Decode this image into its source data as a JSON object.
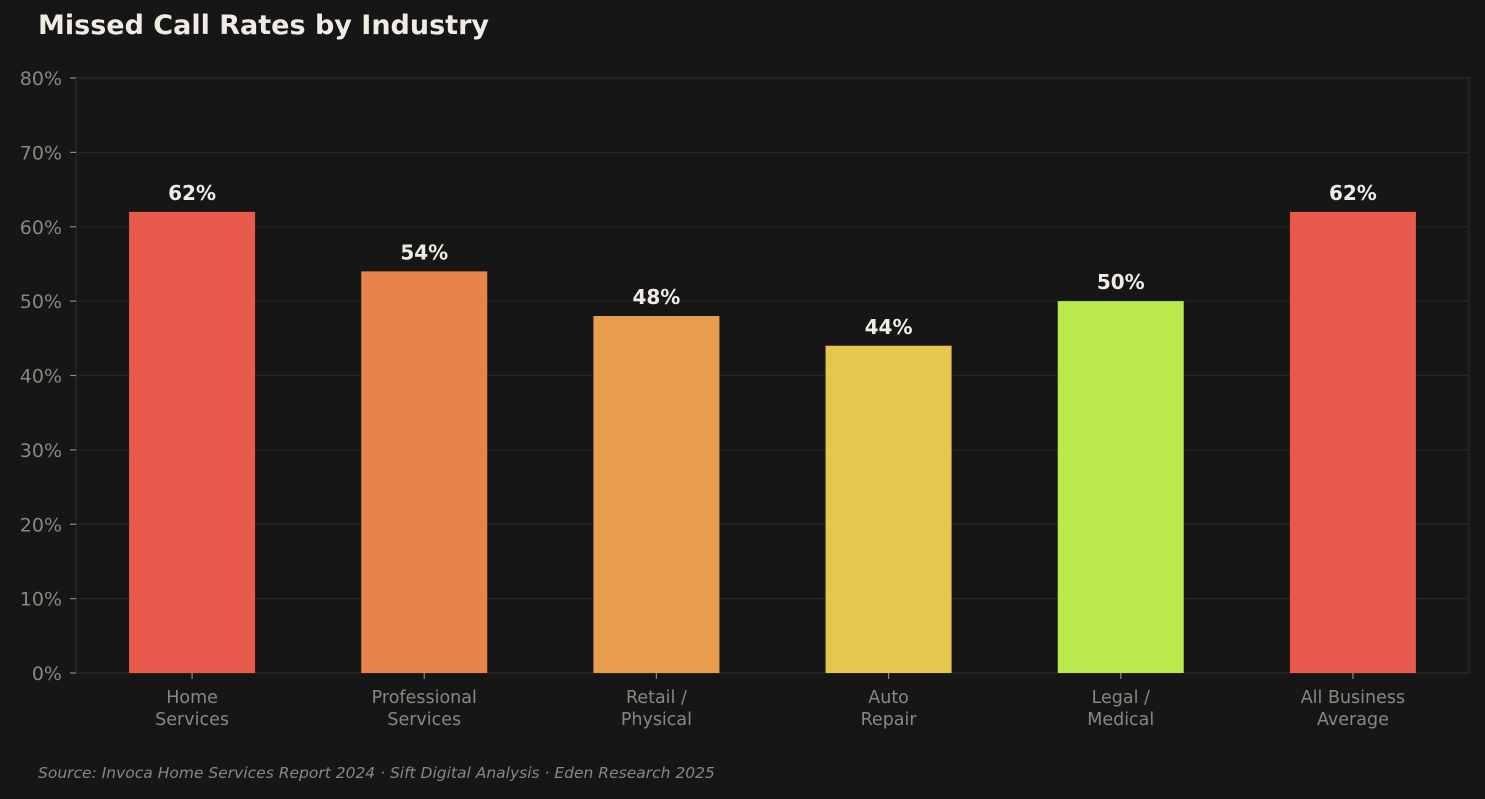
{
  "chart_data": {
    "type": "bar",
    "title": "Missed Call Rates by Industry",
    "categories": [
      [
        "Home",
        "Services"
      ],
      [
        "Professional",
        "Services"
      ],
      [
        "Retail /",
        "Physical"
      ],
      [
        "Auto",
        "Repair"
      ],
      [
        "Legal /",
        "Medical"
      ],
      [
        "All Business",
        "Average"
      ]
    ],
    "values": [
      62,
      54,
      48,
      44,
      50,
      62
    ],
    "data_labels": [
      "62%",
      "54%",
      "48%",
      "44%",
      "50%",
      "62%"
    ],
    "colors": [
      "#E85B4C",
      "#E8834C",
      "#E89D4C",
      "#E6C64C",
      "#BBE84C",
      "#E85B4C"
    ],
    "ylim": [
      0,
      80
    ],
    "yticks": [
      0,
      10,
      20,
      30,
      40,
      50,
      60,
      70,
      80
    ],
    "ytick_labels": [
      "0%",
      "10%",
      "20%",
      "30%",
      "40%",
      "50%",
      "60%",
      "70%",
      "80%"
    ],
    "xlabel": "",
    "ylabel": "",
    "grid": true,
    "source": "Source: Invoca Home Services Report 2024 · Sift Digital Analysis · Eden Research 2025"
  },
  "theme": {
    "background": "#161616",
    "grid": "#262626",
    "tick_text": "#8a877f",
    "label_text": "#f0ece4"
  }
}
